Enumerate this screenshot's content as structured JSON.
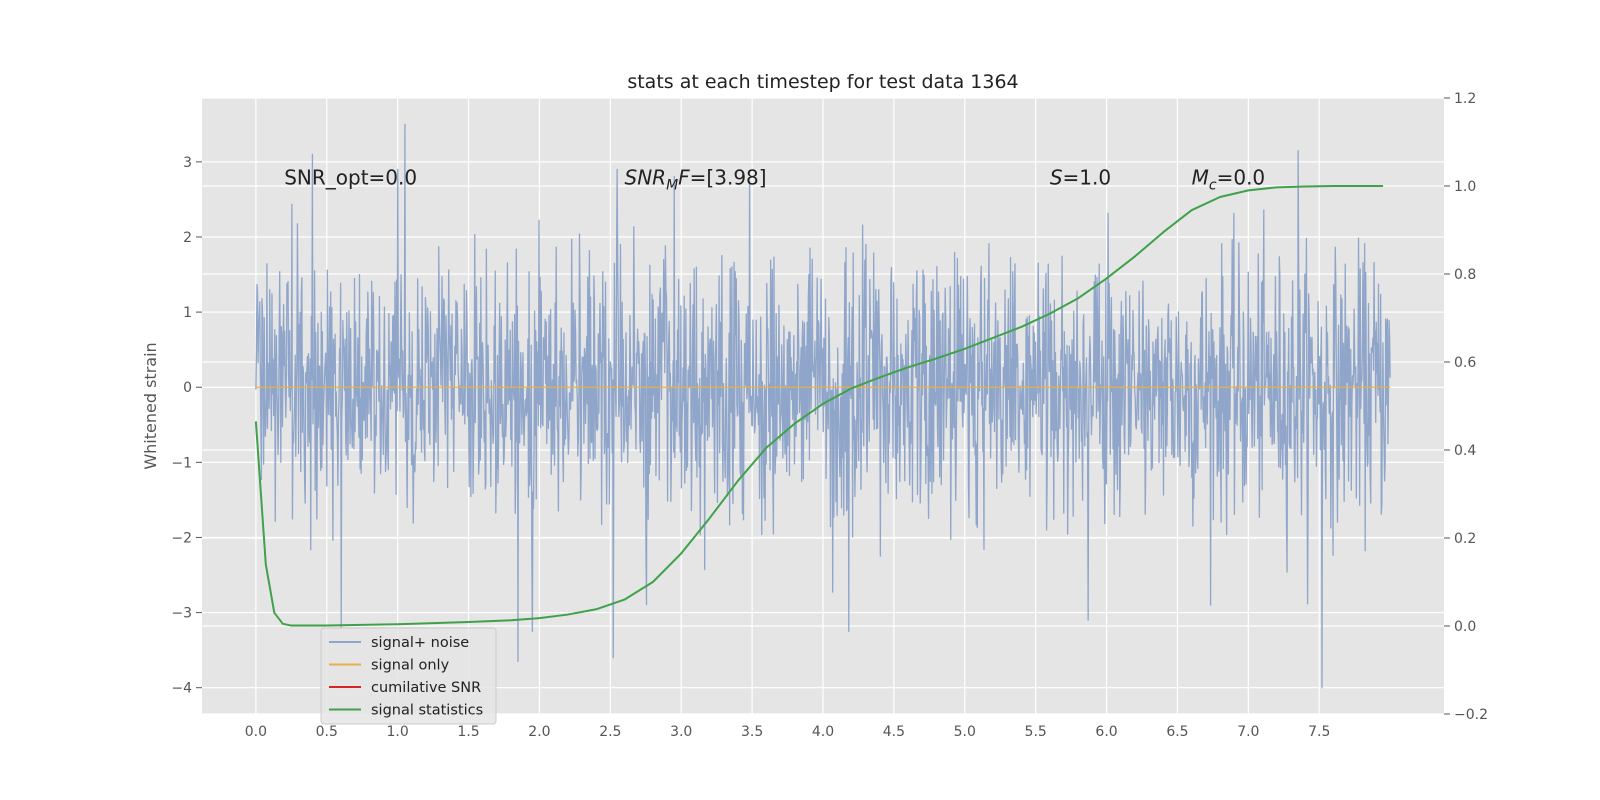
{
  "chart_data": {
    "type": "line",
    "title": "stats at each timestep for test data 1364",
    "ylabel": "Whitened strain",
    "xlabel": "",
    "xlim": [
      -0.38,
      8.38
    ],
    "ylim": [
      -4.35,
      3.85
    ],
    "y2lim": [
      -0.2,
      1.2
    ],
    "x_ticks": [
      "0.0",
      "0.5",
      "1.0",
      "1.5",
      "2.0",
      "2.5",
      "3.0",
      "3.5",
      "4.0",
      "4.5",
      "5.0",
      "5.5",
      "6.0",
      "6.5",
      "7.0",
      "7.5"
    ],
    "y_ticks": [
      "3",
      "2",
      "1",
      "0",
      "−1",
      "−2",
      "−3",
      "−4"
    ],
    "y2_ticks": [
      "1.2",
      "1.0",
      "0.8",
      "0.6",
      "0.4",
      "0.2",
      "0.0",
      "−0.2"
    ],
    "grid": true,
    "legend_position": "lower-left",
    "annotations": [
      {
        "parts": [
          {
            "t": "SNR_opt=0.0",
            "italic": false
          }
        ],
        "x": 0.2,
        "y": 2.7
      },
      {
        "parts": [
          {
            "t": "SNR",
            "italic": true
          },
          {
            "t": "M",
            "italic": true,
            "sub": true
          },
          {
            "t": "F",
            "italic": true
          },
          {
            "t": "=[3.98]",
            "italic": false
          }
        ],
        "x": 2.6,
        "y": 2.7
      },
      {
        "parts": [
          {
            "t": "S",
            "italic": true
          },
          {
            "t": "=1.0",
            "italic": false
          }
        ],
        "x": 5.6,
        "y": 2.7
      },
      {
        "parts": [
          {
            "t": "M",
            "italic": true
          },
          {
            "t": "c",
            "italic": true,
            "sub": true
          },
          {
            "t": "=0.0",
            "italic": false
          }
        ],
        "x": 6.6,
        "y": 2.7
      }
    ],
    "series": [
      {
        "name": "signal+ noise",
        "color": "#8fa5c9",
        "axis": "left",
        "style": "noise",
        "x_start": 0.0,
        "x_end": 8.0,
        "sample_count": 2048,
        "amplitude_std": 0.85,
        "peaks": [
          [
            0.4,
            3.1
          ],
          [
            1.05,
            3.5
          ],
          [
            2.55,
            2.9
          ],
          [
            7.35,
            3.15
          ],
          [
            1.85,
            -3.65
          ],
          [
            1.95,
            -3.25
          ],
          [
            2.52,
            -3.6
          ],
          [
            4.18,
            -3.25
          ],
          [
            7.52,
            -4.0
          ],
          [
            5.87,
            -3.1
          ],
          [
            0.6,
            -3.2
          ]
        ]
      },
      {
        "name": "signal only",
        "color": "#e8b04a",
        "axis": "left",
        "x": [
          0.0,
          8.0
        ],
        "y": [
          0.0,
          0.0
        ]
      },
      {
        "name": "cumilative SNR",
        "color": "#d62728",
        "axis": "right",
        "x": [],
        "y": []
      },
      {
        "name": "signal statistics",
        "color": "#3fa14a",
        "axis": "right",
        "x": [
          0.0,
          0.07,
          0.13,
          0.19,
          0.25,
          0.5,
          1.0,
          1.5,
          1.8,
          2.0,
          2.2,
          2.4,
          2.6,
          2.8,
          3.0,
          3.2,
          3.4,
          3.6,
          3.8,
          4.0,
          4.2,
          4.4,
          4.6,
          4.8,
          5.0,
          5.2,
          5.4,
          5.6,
          5.8,
          6.0,
          6.2,
          6.4,
          6.6,
          6.8,
          7.0,
          7.2,
          7.4,
          7.6,
          7.8,
          7.95
        ],
        "y": [
          0.465,
          0.14,
          0.03,
          0.005,
          0.001,
          0.001,
          0.004,
          0.009,
          0.013,
          0.018,
          0.026,
          0.038,
          0.06,
          0.1,
          0.165,
          0.245,
          0.33,
          0.405,
          0.46,
          0.505,
          0.54,
          0.565,
          0.588,
          0.608,
          0.63,
          0.655,
          0.68,
          0.71,
          0.745,
          0.79,
          0.84,
          0.895,
          0.945,
          0.975,
          0.99,
          0.997,
          0.999,
          1.0,
          1.0,
          1.0
        ]
      }
    ]
  }
}
